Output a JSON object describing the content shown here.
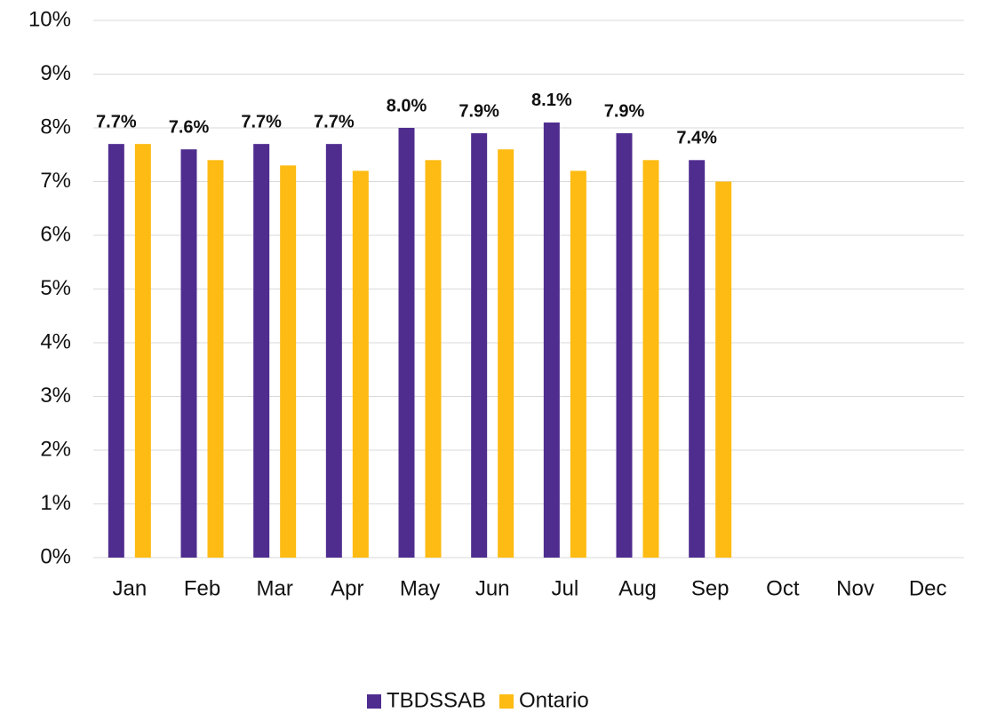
{
  "chart_data": {
    "type": "bar",
    "categories": [
      "Jan",
      "Feb",
      "Mar",
      "Apr",
      "May",
      "Jun",
      "Jul",
      "Aug",
      "Sep",
      "Oct",
      "Nov",
      "Dec"
    ],
    "series": [
      {
        "name": "TBDSSAB",
        "color": "#4f2d8f",
        "values": [
          7.7,
          7.6,
          7.7,
          7.7,
          8.0,
          7.9,
          8.1,
          7.9,
          7.4,
          null,
          null,
          null
        ],
        "value_labels": [
          "7.7%",
          "7.6%",
          "7.7%",
          "7.7%",
          "8.0%",
          "7.9%",
          "8.1%",
          "7.9%",
          "7.4%",
          null,
          null,
          null
        ]
      },
      {
        "name": "Ontario",
        "color": "#fdbb13",
        "values": [
          7.7,
          7.4,
          7.3,
          7.2,
          7.4,
          7.6,
          7.2,
          7.4,
          7.0,
          null,
          null,
          null
        ]
      }
    ],
    "ylim": [
      0,
      10
    ],
    "yticks": [
      {
        "value": 0,
        "label": "0%"
      },
      {
        "value": 1,
        "label": "1%"
      },
      {
        "value": 2,
        "label": "2%"
      },
      {
        "value": 3,
        "label": "3%"
      },
      {
        "value": 4,
        "label": "4%"
      },
      {
        "value": 5,
        "label": "5%"
      },
      {
        "value": 6,
        "label": "6%"
      },
      {
        "value": 7,
        "label": "7%"
      },
      {
        "value": 8,
        "label": "8%"
      },
      {
        "value": 9,
        "label": "9%"
      },
      {
        "value": 10,
        "label": "10%"
      }
    ],
    "grid": true,
    "legend": "bottom"
  }
}
